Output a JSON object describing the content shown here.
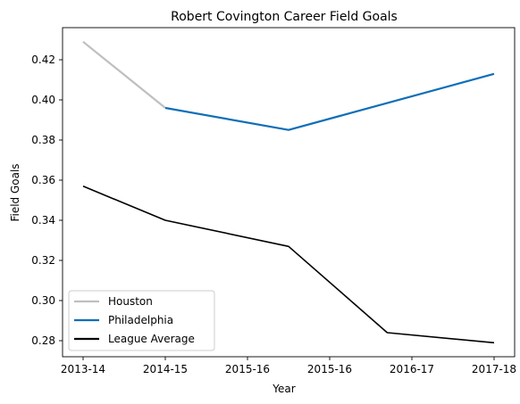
{
  "chart_data": {
    "type": "line",
    "title": "Robert Covington Career Field Goals",
    "xlabel": "Year",
    "ylabel": "Field Goals",
    "categories": [
      "2013-14",
      "2014-15",
      "2015-16",
      "2015-16",
      "2016-17",
      "2017-18"
    ],
    "ylim": [
      0.272,
      0.436
    ],
    "yticks": [
      "0.28",
      "0.30",
      "0.32",
      "0.34",
      "0.36",
      "0.38",
      "0.40",
      "0.42"
    ],
    "legend_position": "lower-left",
    "grid": false,
    "series": [
      {
        "name": "Houston",
        "color": "#bfbfbf",
        "x": [
          0,
          1
        ],
        "values": [
          0.429,
          0.396
        ]
      },
      {
        "name": "Philadelphia",
        "color": "#0e6eb8",
        "x": [
          1,
          2.5,
          5
        ],
        "values": [
          0.396,
          0.385,
          0.413
        ]
      },
      {
        "name": "League Average",
        "color": "#000000",
        "x": [
          0,
          1,
          2.5,
          3.7,
          5
        ],
        "values": [
          0.357,
          0.34,
          0.327,
          0.284,
          0.279
        ]
      }
    ]
  }
}
